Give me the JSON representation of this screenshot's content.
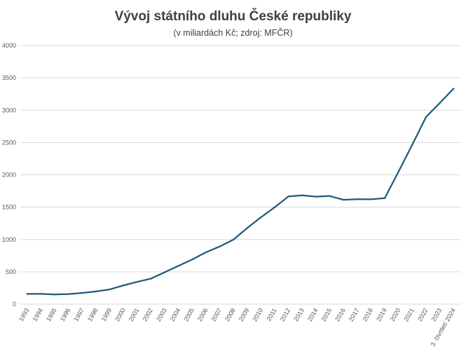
{
  "title": "Vývoj státního dluhu České republiky",
  "subtitle": "(v miliardách Kč; zdroj: MFČR)",
  "line_color": "#1f5a7a",
  "grid_color": "#d9d9d9",
  "chart_data": {
    "type": "line",
    "title": "Vývoj státního dluhu České republiky",
    "subtitle": "(v miliardách Kč; zdroj: MFČR)",
    "xlabel": "",
    "ylabel": "",
    "ylim": [
      0,
      4000
    ],
    "yticks": [
      0,
      500,
      1000,
      1500,
      2000,
      2500,
      3000,
      3500,
      4000
    ],
    "grid": "horizontal",
    "legend": "none",
    "categories": [
      "1993",
      "1994",
      "1995",
      "1996",
      "1997",
      "1998",
      "1999",
      "2000",
      "2001",
      "2002",
      "2003",
      "2004",
      "2005",
      "2006",
      "2007",
      "2008",
      "2009",
      "2010",
      "2011",
      "2012",
      "2013",
      "2014",
      "2015",
      "2016",
      "2017",
      "2018",
      "2019",
      "2020",
      "2021",
      "2022",
      "2023",
      "3. čtvrtletí 2024"
    ],
    "series": [
      {
        "values": [
          159,
          158,
          150,
          156,
          173,
          196,
          228,
          290,
          345,
          395,
          493,
          592,
          691,
          802,
          892,
          999,
          1178,
          1344,
          1499,
          1667,
          1683,
          1663,
          1673,
          1614,
          1624,
          1622,
          1640,
          2049,
          2466,
          2895,
          3111,
          3333
        ]
      }
    ]
  }
}
